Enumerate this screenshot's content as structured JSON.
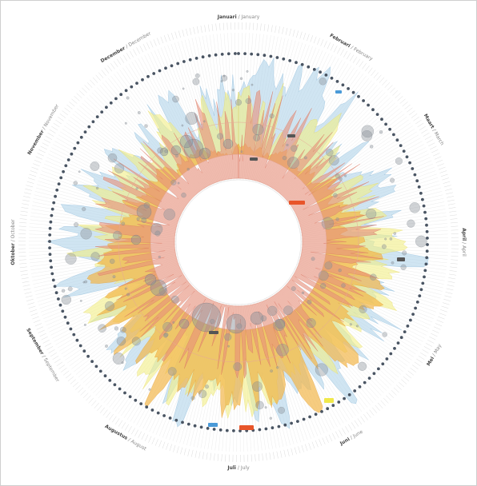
{
  "chart_data": {
    "type": "area",
    "title": "",
    "layout": "radial",
    "months": [
      {
        "primary": "Januari",
        "secondary": "January"
      },
      {
        "primary": "Februari",
        "secondary": "February"
      },
      {
        "primary": "Maart",
        "secondary": "March"
      },
      {
        "primary": "April",
        "secondary": "April"
      },
      {
        "primary": "Mei",
        "secondary": "May"
      },
      {
        "primary": "Juni",
        "secondary": "June"
      },
      {
        "primary": "Juli",
        "secondary": "July"
      },
      {
        "primary": "Augustus",
        "secondary": "August"
      },
      {
        "primary": "September",
        "secondary": "September"
      },
      {
        "primary": "Oktober",
        "secondary": "October"
      },
      {
        "primary": "November",
        "secondary": "November"
      },
      {
        "primary": "December",
        "secondary": "December"
      }
    ],
    "series_colors": {
      "inner_area": "#e8907a",
      "orange_area": "#f2b64a",
      "yellow_area": "#f1ef86",
      "blue_area": "#a9cfe8",
      "bubbles": "#8a9099",
      "dots": "#4a5563"
    },
    "tag_colors": {
      "dark": "#555555",
      "orange": "#e8552a",
      "blue": "#4a9ad8",
      "yellow": "#f0e84a"
    }
  }
}
